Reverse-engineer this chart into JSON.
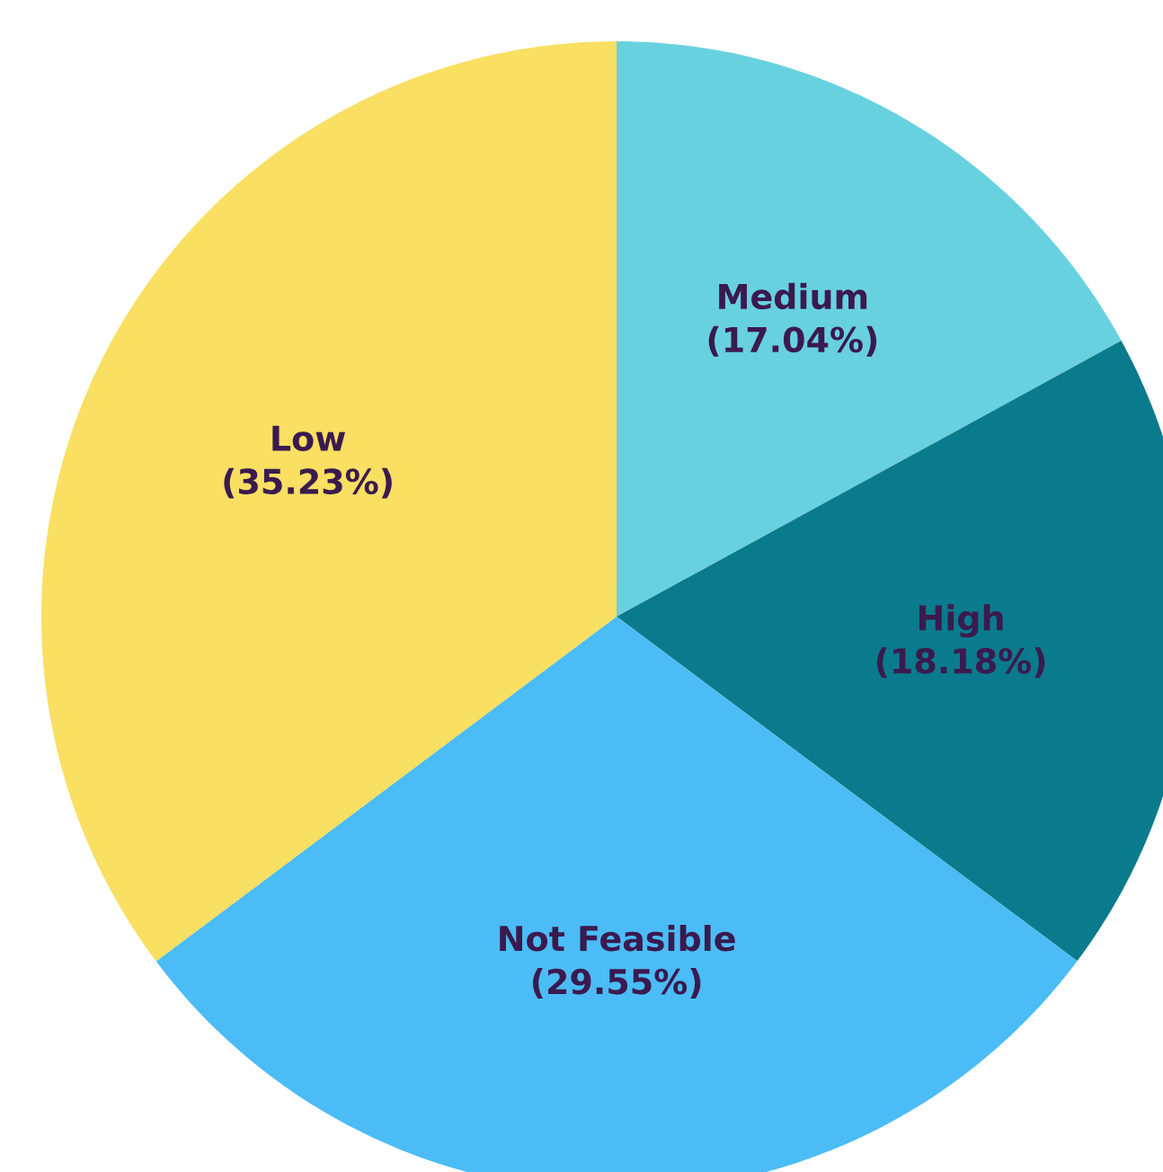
{
  "chart_data": {
    "type": "pie",
    "categories": [
      "Medium",
      "High",
      "Not Feasible",
      "Low"
    ],
    "values": [
      17.04,
      18.18,
      29.55,
      35.23
    ],
    "colors": [
      "#68d1e0",
      "#0a7b8c",
      "#4bbcf5",
      "#f9df62"
    ],
    "value_labels": [
      "(17.04%)",
      "(18.18%)",
      "(29.55%)",
      "(35.23%)"
    ]
  }
}
